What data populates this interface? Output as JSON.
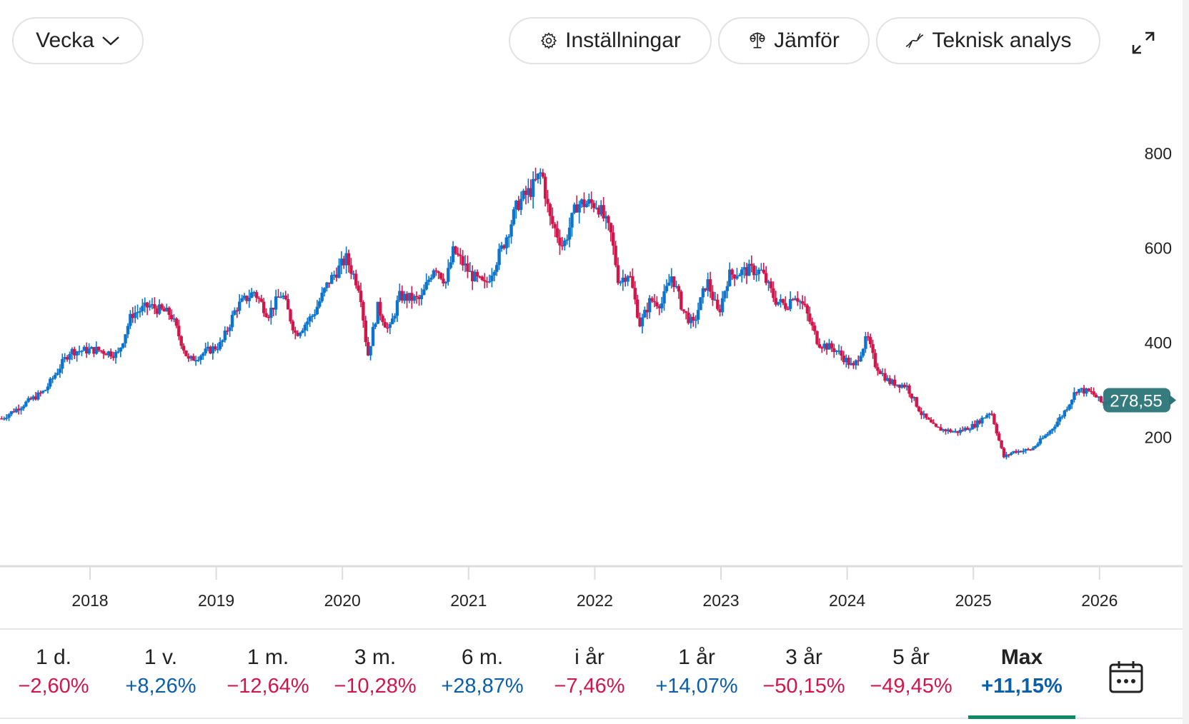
{
  "toolbar": {
    "interval_label": "Vecka",
    "settings_label": "Inställningar",
    "compare_label": "Jämför",
    "technical_label": "Teknisk analys"
  },
  "colors": {
    "up": "#0b74cc",
    "down": "#d0174c",
    "price_tag": "#2b7578",
    "active_period": "#0b8a6a",
    "axis": "#dcdcdc",
    "pos_text": "#0b5ea8",
    "neg_text": "#d0174c"
  },
  "periods": [
    {
      "label": "1 d.",
      "change": "−2,60%",
      "direction": "neg",
      "active": false
    },
    {
      "label": "1 v.",
      "change": "+8,26%",
      "direction": "pos",
      "active": false
    },
    {
      "label": "1 m.",
      "change": "−12,64%",
      "direction": "neg",
      "active": false
    },
    {
      "label": "3 m.",
      "change": "−10,28%",
      "direction": "neg",
      "active": false
    },
    {
      "label": "6 m.",
      "change": "+28,87%",
      "direction": "pos",
      "active": false
    },
    {
      "label": "i år",
      "change": "−7,46%",
      "direction": "neg",
      "active": false
    },
    {
      "label": "1 år",
      "change": "+14,07%",
      "direction": "pos",
      "active": false
    },
    {
      "label": "3 år",
      "change": "−50,15%",
      "direction": "neg",
      "active": false
    },
    {
      "label": "5 år",
      "change": "−49,45%",
      "direction": "neg",
      "active": false
    },
    {
      "label": "Max",
      "change": "+11,15%",
      "direction": "pos",
      "active": true
    }
  ],
  "chart_data": {
    "type": "candlestick",
    "interval": "weekly",
    "title": "",
    "xlabel": "",
    "ylabel": "",
    "x_ticks": [
      "2018",
      "2019",
      "2020",
      "2021",
      "2022",
      "2023",
      "2024",
      "2025",
      "2026"
    ],
    "x_range": [
      2017.3,
      2026.15
    ],
    "y_ticks": [
      200,
      400,
      600,
      800
    ],
    "ylim": [
      0,
      1000
    ],
    "y_axis_position": "right",
    "grid": false,
    "last_price": 278.55,
    "last_price_label": "278,55",
    "close_path": [
      [
        2017.3,
        240
      ],
      [
        2017.64,
        298
      ],
      [
        2017.84,
        382
      ],
      [
        2018.05,
        385
      ],
      [
        2018.22,
        375
      ],
      [
        2018.33,
        460
      ],
      [
        2018.47,
        478
      ],
      [
        2018.64,
        460
      ],
      [
        2018.78,
        362
      ],
      [
        2019.04,
        397
      ],
      [
        2019.16,
        475
      ],
      [
        2019.3,
        508
      ],
      [
        2019.41,
        460
      ],
      [
        2019.52,
        505
      ],
      [
        2019.63,
        418
      ],
      [
        2019.77,
        460
      ],
      [
        2019.89,
        528
      ],
      [
        2020.03,
        578
      ],
      [
        2020.14,
        513
      ],
      [
        2020.2,
        370
      ],
      [
        2020.28,
        475
      ],
      [
        2020.37,
        423
      ],
      [
        2020.45,
        498
      ],
      [
        2020.62,
        490
      ],
      [
        2020.73,
        565
      ],
      [
        2020.82,
        528
      ],
      [
        2020.88,
        595
      ],
      [
        2021.02,
        543
      ],
      [
        2021.13,
        520
      ],
      [
        2021.27,
        603
      ],
      [
        2021.39,
        694
      ],
      [
        2021.5,
        725
      ],
      [
        2021.58,
        762
      ],
      [
        2021.64,
        665
      ],
      [
        2021.75,
        603
      ],
      [
        2021.86,
        694
      ],
      [
        2022.02,
        694
      ],
      [
        2022.13,
        626
      ],
      [
        2022.19,
        528
      ],
      [
        2022.27,
        550
      ],
      [
        2022.36,
        437
      ],
      [
        2022.44,
        490
      ],
      [
        2022.53,
        483
      ],
      [
        2022.61,
        543
      ],
      [
        2022.7,
        468
      ],
      [
        2022.78,
        437
      ],
      [
        2022.89,
        532
      ],
      [
        2022.98,
        460
      ],
      [
        2023.06,
        543
      ],
      [
        2023.23,
        554
      ],
      [
        2023.32,
        550
      ],
      [
        2023.43,
        490
      ],
      [
        2023.52,
        478
      ],
      [
        2023.58,
        505
      ],
      [
        2023.66,
        475
      ],
      [
        2023.77,
        400
      ],
      [
        2023.91,
        385
      ],
      [
        2024.05,
        347
      ],
      [
        2024.16,
        412
      ],
      [
        2024.22,
        355
      ],
      [
        2024.33,
        317
      ],
      [
        2024.47,
        309
      ],
      [
        2024.59,
        249
      ],
      [
        2024.7,
        219
      ],
      [
        2024.87,
        211
      ],
      [
        2025.01,
        226
      ],
      [
        2025.14,
        256
      ],
      [
        2025.24,
        158
      ],
      [
        2025.32,
        170
      ],
      [
        2025.46,
        174
      ],
      [
        2025.6,
        211
      ],
      [
        2025.71,
        249
      ],
      [
        2025.82,
        302
      ],
      [
        2025.94,
        294
      ],
      [
        2026.02,
        272
      ],
      [
        2026.1,
        278.55
      ]
    ]
  }
}
